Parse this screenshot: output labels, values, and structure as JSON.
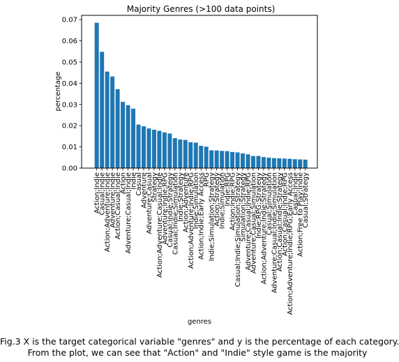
{
  "caption": {
    "line1": "Fig.3 X is the target categorical variable \"genres\" and y is the percentage of each category.",
    "line2": "From the plot, we can see that \"Action\" and \"Indie\" style game is the majority"
  },
  "chart_data": {
    "type": "bar",
    "title": "Majority Genres (>100 data points)",
    "xlabel": "genres",
    "ylabel": "percentage",
    "ylim": [
      0,
      0.072
    ],
    "yticks": [
      0.0,
      0.01,
      0.02,
      0.03,
      0.04,
      0.05,
      0.06,
      0.07
    ],
    "ytick_labels": [
      "0.00",
      "0.01",
      "0.02",
      "0.03",
      "0.04",
      "0.05",
      "0.06",
      "0.07"
    ],
    "bar_color": "#1f77b4",
    "grid": false,
    "categories": [
      "Action;Indie",
      "Casual;Indie",
      "Action;Adventure;Indie",
      "Adventure;Indie",
      "Action;Casual;Indie",
      "Action",
      "Adventure;Casual;Indie",
      "Indie",
      "Casual",
      "Adventure",
      "Adventure;Casual",
      "Strategy",
      "Action;Adventure;Casual;Indie",
      "Adventure;Indie;RPG",
      "Casual;Indie;Strategy",
      "Casual;Indie;Simulation",
      "Indie;Strategy",
      "Action;Adventure",
      "Action;Adventure;Indie;RPG",
      "Indie;Simulation",
      "Action;Indie;Early Access",
      "RPG",
      "Indie;Simulation;Strategy",
      "Action;Strategy",
      "Indie;Simulation",
      "Indie;RPG",
      "Action;Indie;RPG",
      "Casual;Indie;Simulation;Strategy",
      "Simulation;Strategy",
      "Adventure;Casual;Indie;RPG",
      "Adventure;Casual;Simulation",
      "Indie;RPG;Strategy",
      "Action;Adventure;Indie;Strategy",
      "Casual;Simulation",
      "Adventure;Casual;Indie;Simulation",
      "Action;Casual;Indie;Strategy",
      "Action;Casual;Indie;RPG",
      "Action;Adventure;Indie;RPG;Early Access",
      "Casual;Indie",
      "Action;Free to Play;Indie",
      "Casual;Strategy"
    ],
    "values": [
      0.0685,
      0.0548,
      0.0455,
      0.0432,
      0.0372,
      0.0312,
      0.0296,
      0.028,
      0.0205,
      0.0197,
      0.0187,
      0.0181,
      0.0176,
      0.0168,
      0.0163,
      0.0141,
      0.0135,
      0.0133,
      0.0122,
      0.012,
      0.0105,
      0.0101,
      0.0084,
      0.0083,
      0.0081,
      0.008,
      0.0076,
      0.0074,
      0.0069,
      0.0065,
      0.0057,
      0.0057,
      0.0052,
      0.0049,
      0.0047,
      0.0046,
      0.0045,
      0.0044,
      0.0042,
      0.0041,
      0.004
    ]
  }
}
